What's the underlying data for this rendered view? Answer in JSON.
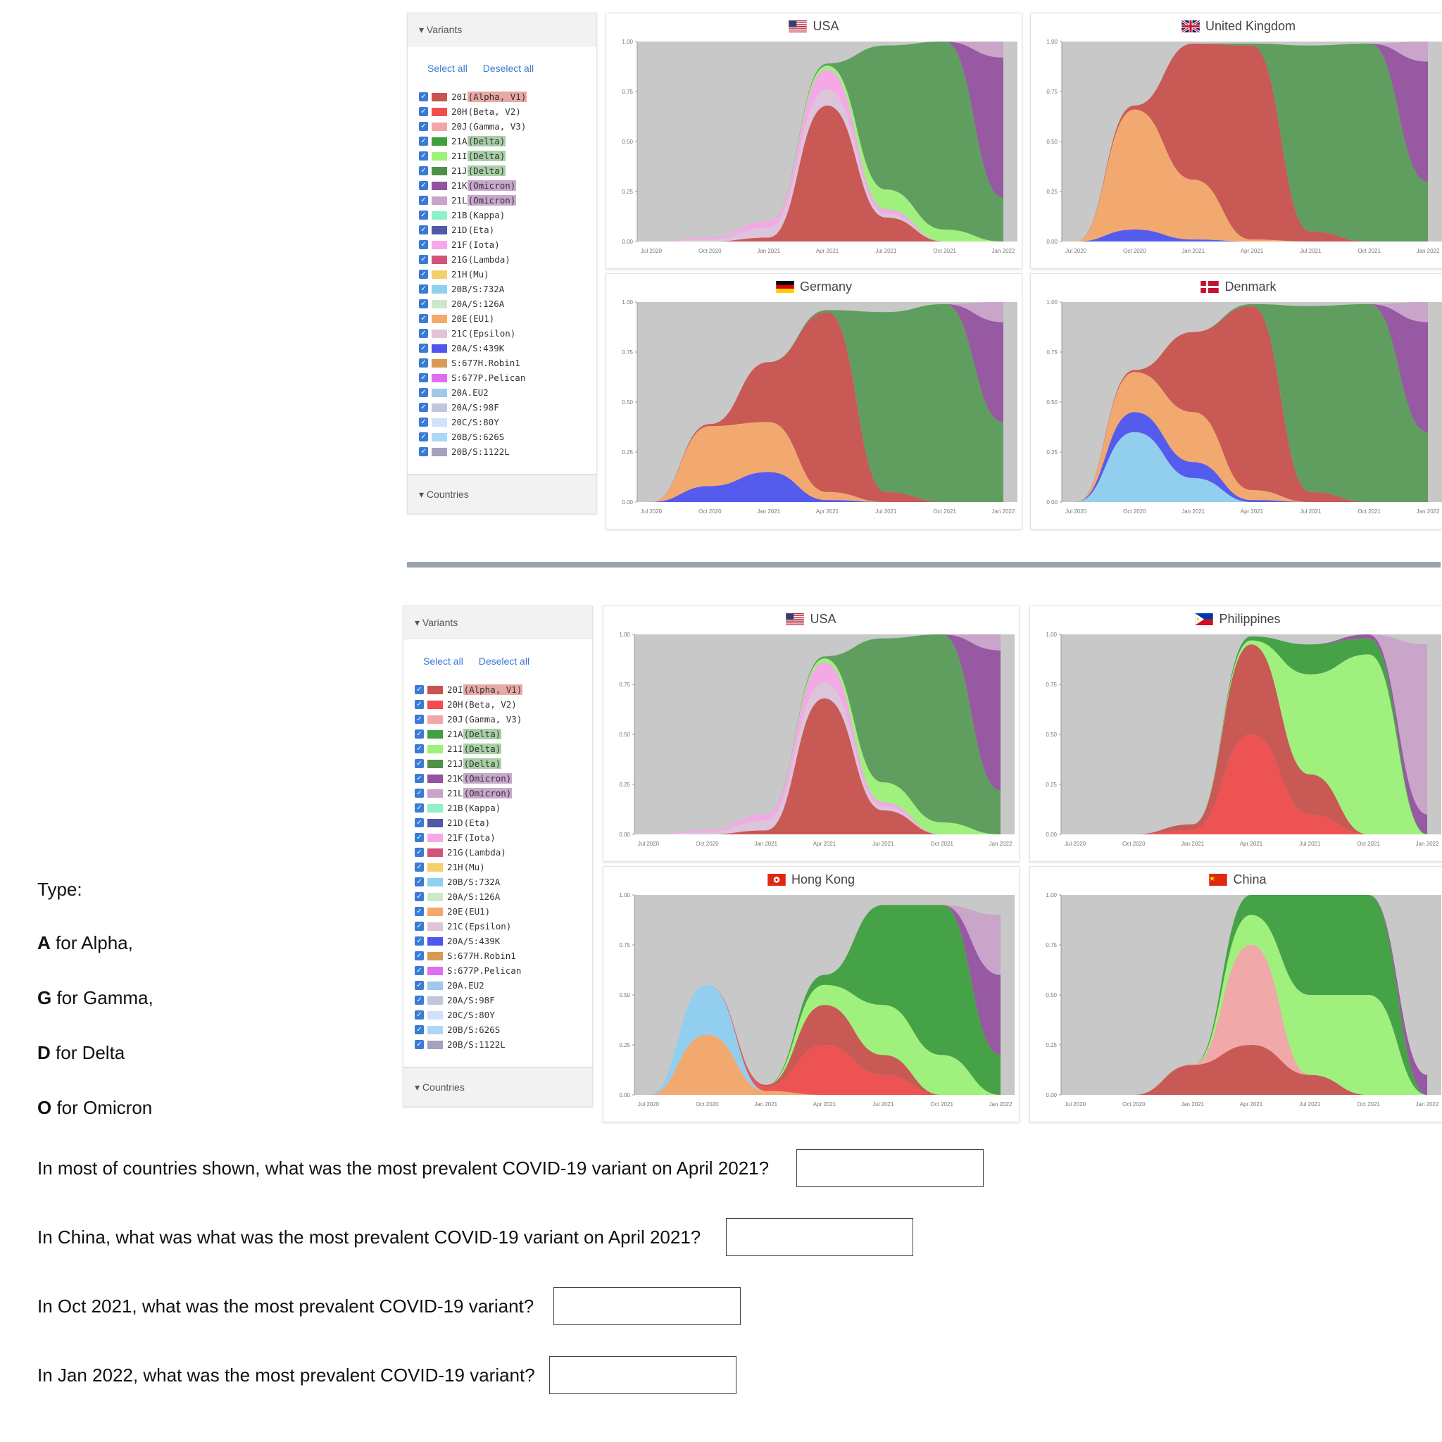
{
  "variants_panel": {
    "header": "Variants",
    "select_all": "Select all",
    "deselect_all": "Deselect all",
    "countries_header": "Countries",
    "items": [
      {
        "code": "20I",
        "name": "(Alpha, V1)",
        "color": "#c9534f",
        "highlight": "#e8a9a5"
      },
      {
        "code": "20H",
        "name": "(Beta, V2)",
        "color": "#f04d4d"
      },
      {
        "code": "20J",
        "name": "(Gamma, V3)",
        "color": "#f2a7a7"
      },
      {
        "code": "21A",
        "name": "(Delta)",
        "color": "#3fa03f",
        "highlight": "#a9cfa6"
      },
      {
        "code": "21I",
        "name": "(Delta)",
        "color": "#9ef27a",
        "highlight": "#a9cfa6"
      },
      {
        "code": "21J",
        "name": "(Delta)",
        "color": "#4f8f4a",
        "highlight": "#a9cfa6"
      },
      {
        "code": "21K",
        "name": "(Omicron)",
        "color": "#9453a0",
        "highlight": "#c8a8cc"
      },
      {
        "code": "21L",
        "name": "(Omicron)",
        "color": "#c9a3c9",
        "highlight": "#c8a8cc"
      },
      {
        "code": "21B",
        "name": "(Kappa)",
        "color": "#8ff0c9"
      },
      {
        "code": "21D",
        "name": "(Eta)",
        "color": "#5058a8"
      },
      {
        "code": "21F",
        "name": "(Iota)",
        "color": "#f7a8e8"
      },
      {
        "code": "21G",
        "name": "(Lambda)",
        "color": "#d2547a"
      },
      {
        "code": "21H",
        "name": "(Mu)",
        "color": "#f2d16b"
      },
      {
        "code": "20B/S:732A",
        "name": "",
        "color": "#8fd0f0"
      },
      {
        "code": "20A/S:126A",
        "name": "",
        "color": "#cde8c8"
      },
      {
        "code": "20E",
        "name": "(EU1)",
        "color": "#f4a86a"
      },
      {
        "code": "21C",
        "name": "(Epsilon)",
        "color": "#e2c4d8"
      },
      {
        "code": "20A/S:439K",
        "name": "",
        "color": "#4f55ef"
      },
      {
        "code": "S:677H.Robin1",
        "name": "",
        "color": "#d99a55"
      },
      {
        "code": "S:677P.Pelican",
        "name": "",
        "color": "#e06ef0"
      },
      {
        "code": "20A.EU2",
        "name": "",
        "color": "#9fc8ec"
      },
      {
        "code": "20A/S:98F",
        "name": "",
        "color": "#c2c6dc"
      },
      {
        "code": "20C/S:80Y",
        "name": "",
        "color": "#cfe2fb"
      },
      {
        "code": "20B/S:626S",
        "name": "",
        "color": "#aed6f5"
      },
      {
        "code": "20B/S:1122L",
        "name": "",
        "color": "#a3a3bf"
      }
    ]
  },
  "legend": {
    "type_label": "Type:",
    "items": [
      {
        "letter": "A",
        "text": " for Alpha,"
      },
      {
        "letter": "G",
        "text": " for Gamma,"
      },
      {
        "letter": "D",
        "text": " for Delta"
      },
      {
        "letter": "O",
        "text": " for Omicron"
      }
    ]
  },
  "questions": [
    "In most of countries shown, what was the most prevalent COVID-19 variant on April 2021?",
    "In China, what was what was the most prevalent COVID-19 variant on April 2021?",
    "In Oct 2021, what was the most prevalent COVID-19 variant?",
    "In Jan 2022, what was the most prevalent COVID-19 variant?"
  ],
  "colors": {
    "background_gray": "#c8c8c8",
    "alpha": "#c9534f",
    "beta": "#f04d4d",
    "gamma": "#f2a7a7",
    "delta_21A": "#3fa03f",
    "delta_21I": "#9ef27a",
    "delta_21J": "#5a9c58",
    "omicron_21K": "#9453a0",
    "omicron_21L": "#c9a3c9",
    "eu1": "#f4a86a",
    "iota": "#f7a8e8",
    "epsilon": "#ddc4dc",
    "s439k": "#4f55ef",
    "s732a": "#8fd0f0",
    "s126a": "#cde8c8"
  },
  "chart_data": [
    {
      "type": "area",
      "panel": "top-left",
      "title": "USA",
      "flag": "usa",
      "x": [
        "Jul 2020",
        "Oct 2020",
        "Jan 2021",
        "Apr 2021",
        "Jul 2021",
        "Oct 2021",
        "Jan 2022"
      ],
      "yticks": [
        "0.00",
        "0.25",
        "0.50",
        "0.75",
        "1.00"
      ],
      "ylim": [
        0,
        1
      ],
      "series": [
        {
          "name": "20I",
          "color": "#c9534f",
          "values": [
            0,
            0,
            0.02,
            0.68,
            0.12,
            0,
            0
          ]
        },
        {
          "name": "21C",
          "color": "#ddc4dc",
          "values": [
            0,
            0.01,
            0.05,
            0.08,
            0.02,
            0,
            0
          ]
        },
        {
          "name": "21F",
          "color": "#f7a8e8",
          "values": [
            0,
            0.01,
            0.03,
            0.1,
            0.02,
            0,
            0
          ]
        },
        {
          "name": "21I",
          "color": "#9ef27a",
          "values": [
            0,
            0,
            0,
            0.02,
            0.1,
            0.06,
            0
          ]
        },
        {
          "name": "21J",
          "color": "#5a9c58",
          "values": [
            0,
            0,
            0,
            0.01,
            0.72,
            0.94,
            0.22
          ]
        },
        {
          "name": "21K",
          "color": "#9453a0",
          "values": [
            0,
            0,
            0,
            0,
            0,
            0,
            0.7
          ]
        },
        {
          "name": "21L",
          "color": "#c9a3c9",
          "values": [
            0,
            0,
            0,
            0,
            0,
            0,
            0.08
          ]
        }
      ]
    },
    {
      "type": "area",
      "panel": "top-right",
      "title": "United Kingdom",
      "flag": "uk",
      "x": [
        "Jul 2020",
        "Oct 2020",
        "Jan 2021",
        "Apr 2021",
        "Jul 2021",
        "Oct 2021",
        "Jan 2022"
      ],
      "yticks": [
        "0.00",
        "0.25",
        "0.50",
        "0.75",
        "1.00"
      ],
      "ylim": [
        0,
        1
      ],
      "series": [
        {
          "name": "20A/S:439K",
          "color": "#4f55ef",
          "values": [
            0,
            0.06,
            0.01,
            0,
            0,
            0,
            0
          ]
        },
        {
          "name": "20E",
          "color": "#f4a86a",
          "values": [
            0,
            0.6,
            0.3,
            0.01,
            0,
            0,
            0
          ]
        },
        {
          "name": "20I",
          "color": "#c9534f",
          "values": [
            0,
            0.02,
            0.68,
            0.97,
            0.05,
            0,
            0
          ]
        },
        {
          "name": "21J",
          "color": "#5a9c58",
          "values": [
            0,
            0,
            0,
            0.01,
            0.93,
            0.99,
            0.3
          ]
        },
        {
          "name": "21K",
          "color": "#9453a0",
          "values": [
            0,
            0,
            0,
            0,
            0,
            0,
            0.6
          ]
        },
        {
          "name": "21L",
          "color": "#c9a3c9",
          "values": [
            0,
            0,
            0,
            0,
            0,
            0,
            0.1
          ]
        }
      ]
    },
    {
      "type": "area",
      "panel": "mid-left",
      "title": "Germany",
      "flag": "germany",
      "x": [
        "Jul 2020",
        "Oct 2020",
        "Jan 2021",
        "Apr 2021",
        "Jul 2021",
        "Oct 2021",
        "Jan 2022"
      ],
      "yticks": [
        "0.00",
        "0.25",
        "0.50",
        "0.75",
        "1.00"
      ],
      "ylim": [
        0,
        1
      ],
      "series": [
        {
          "name": "20A/S:439K",
          "color": "#4f55ef",
          "values": [
            0,
            0.08,
            0.15,
            0.01,
            0,
            0,
            0
          ]
        },
        {
          "name": "20E",
          "color": "#f4a86a",
          "values": [
            0,
            0.3,
            0.25,
            0.04,
            0,
            0,
            0
          ]
        },
        {
          "name": "20I",
          "color": "#c9534f",
          "values": [
            0,
            0.01,
            0.3,
            0.9,
            0.05,
            0,
            0
          ]
        },
        {
          "name": "21J",
          "color": "#5a9c58",
          "values": [
            0,
            0,
            0,
            0.01,
            0.9,
            0.99,
            0.4
          ]
        },
        {
          "name": "21K",
          "color": "#9453a0",
          "values": [
            0,
            0,
            0,
            0,
            0,
            0,
            0.5
          ]
        },
        {
          "name": "21L",
          "color": "#c9a3c9",
          "values": [
            0,
            0,
            0,
            0,
            0,
            0,
            0.1
          ]
        }
      ]
    },
    {
      "type": "area",
      "panel": "mid-right",
      "title": "Denmark",
      "flag": "denmark",
      "x": [
        "Jul 2020",
        "Oct 2020",
        "Jan 2021",
        "Apr 2021",
        "Jul 2021",
        "Oct 2021",
        "Jan 2022"
      ],
      "yticks": [
        "0.00",
        "0.25",
        "0.50",
        "0.75",
        "1.00"
      ],
      "ylim": [
        0,
        1
      ],
      "series": [
        {
          "name": "20B/S:732A",
          "color": "#8fd0f0",
          "values": [
            0,
            0.35,
            0.12,
            0,
            0,
            0,
            0
          ]
        },
        {
          "name": "20A/S:439K",
          "color": "#4f55ef",
          "values": [
            0,
            0.1,
            0.08,
            0.01,
            0,
            0,
            0
          ]
        },
        {
          "name": "20E",
          "color": "#f4a86a",
          "values": [
            0,
            0.2,
            0.25,
            0.05,
            0,
            0,
            0
          ]
        },
        {
          "name": "20I",
          "color": "#c9534f",
          "values": [
            0,
            0.01,
            0.4,
            0.92,
            0.05,
            0,
            0
          ]
        },
        {
          "name": "21J",
          "color": "#5a9c58",
          "values": [
            0,
            0,
            0,
            0.01,
            0.93,
            0.99,
            0.35
          ]
        },
        {
          "name": "21K",
          "color": "#9453a0",
          "values": [
            0,
            0,
            0,
            0,
            0,
            0,
            0.55
          ]
        },
        {
          "name": "21L",
          "color": "#c9a3c9",
          "values": [
            0,
            0,
            0,
            0,
            0,
            0,
            0.1
          ]
        }
      ]
    },
    {
      "type": "area",
      "panel": "bottom-usa",
      "title": "USA",
      "flag": "usa",
      "x": [
        "Jul 2020",
        "Oct 2020",
        "Jan 2021",
        "Apr 2021",
        "Jul 2021",
        "Oct 2021",
        "Jan 2022"
      ],
      "yticks": [
        "0.00",
        "0.25",
        "0.50",
        "0.75",
        "1.00"
      ],
      "ylim": [
        0,
        1
      ],
      "series": [
        {
          "name": "20I",
          "color": "#c9534f",
          "values": [
            0,
            0,
            0.02,
            0.68,
            0.12,
            0,
            0
          ]
        },
        {
          "name": "21C",
          "color": "#ddc4dc",
          "values": [
            0,
            0.01,
            0.05,
            0.08,
            0.02,
            0,
            0
          ]
        },
        {
          "name": "21F",
          "color": "#f7a8e8",
          "values": [
            0,
            0.01,
            0.03,
            0.1,
            0.02,
            0,
            0
          ]
        },
        {
          "name": "21I",
          "color": "#9ef27a",
          "values": [
            0,
            0,
            0,
            0.02,
            0.1,
            0.06,
            0
          ]
        },
        {
          "name": "21J",
          "color": "#5a9c58",
          "values": [
            0,
            0,
            0,
            0.01,
            0.72,
            0.94,
            0.22
          ]
        },
        {
          "name": "21K",
          "color": "#9453a0",
          "values": [
            0,
            0,
            0,
            0,
            0,
            0,
            0.7
          ]
        },
        {
          "name": "21L",
          "color": "#c9a3c9",
          "values": [
            0,
            0,
            0,
            0,
            0,
            0,
            0.08
          ]
        }
      ]
    },
    {
      "type": "area",
      "panel": "bottom-philippines",
      "title": "Philippines",
      "flag": "philippines",
      "x": [
        "Jul 2020",
        "Oct 2020",
        "Jan 2021",
        "Apr 2021",
        "Jul 2021",
        "Oct 2021",
        "Jan 2022"
      ],
      "yticks": [
        "0.00",
        "0.25",
        "0.50",
        "0.75",
        "1.00"
      ],
      "ylim": [
        0,
        1
      ],
      "series": [
        {
          "name": "20H",
          "color": "#f04d4d",
          "values": [
            0,
            0,
            0.02,
            0.5,
            0.1,
            0,
            0
          ]
        },
        {
          "name": "20I",
          "color": "#c9534f",
          "values": [
            0,
            0,
            0.03,
            0.45,
            0.2,
            0,
            0
          ]
        },
        {
          "name": "21I",
          "color": "#9ef27a",
          "values": [
            0,
            0,
            0,
            0.02,
            0.5,
            0.9,
            0
          ]
        },
        {
          "name": "21A",
          "color": "#3fa03f",
          "values": [
            0,
            0,
            0,
            0.02,
            0.15,
            0.08,
            0
          ]
        },
        {
          "name": "21K",
          "color": "#9453a0",
          "values": [
            0,
            0,
            0,
            0,
            0,
            0.02,
            0.1
          ]
        },
        {
          "name": "21L",
          "color": "#c9a3c9",
          "values": [
            0,
            0,
            0,
            0,
            0,
            0,
            0.85
          ]
        }
      ]
    },
    {
      "type": "area",
      "panel": "bottom-hongkong",
      "title": "Hong Kong",
      "flag": "hongkong",
      "x": [
        "Jul 2020",
        "Oct 2020",
        "Jan 2021",
        "Apr 2021",
        "Jul 2021",
        "Oct 2021",
        "Jan 2022"
      ],
      "yticks": [
        "0.00",
        "0.25",
        "0.50",
        "0.75",
        "1.00"
      ],
      "ylim": [
        0,
        1
      ],
      "series": [
        {
          "name": "20E",
          "color": "#f4a86a",
          "values": [
            0,
            0.3,
            0.02,
            0,
            0,
            0,
            0
          ]
        },
        {
          "name": "20B/S:732A",
          "color": "#8fd0f0",
          "values": [
            0,
            0.25,
            0,
            0,
            0,
            0,
            0
          ]
        },
        {
          "name": "20H",
          "color": "#f04d4d",
          "values": [
            0,
            0,
            0.02,
            0.25,
            0.1,
            0,
            0
          ]
        },
        {
          "name": "20I",
          "color": "#c9534f",
          "values": [
            0,
            0,
            0.01,
            0.2,
            0.1,
            0,
            0
          ]
        },
        {
          "name": "21I",
          "color": "#9ef27a",
          "values": [
            0,
            0,
            0,
            0.1,
            0.25,
            0.2,
            0
          ]
        },
        {
          "name": "21A",
          "color": "#3fa03f",
          "values": [
            0,
            0,
            0,
            0.05,
            0.5,
            0.75,
            0.2
          ]
        },
        {
          "name": "21K",
          "color": "#9453a0",
          "values": [
            0,
            0,
            0,
            0,
            0,
            0,
            0.4
          ]
        },
        {
          "name": "21L",
          "color": "#c9a3c9",
          "values": [
            0,
            0,
            0,
            0,
            0,
            0,
            0.3
          ]
        }
      ]
    },
    {
      "type": "area",
      "panel": "bottom-china",
      "title": "China",
      "flag": "china",
      "x": [
        "Jul 2020",
        "Oct 2020",
        "Jan 2021",
        "Apr 2021",
        "Jul 2021",
        "Oct 2021",
        "Jan 2022"
      ],
      "yticks": [
        "0.00",
        "0.25",
        "0.50",
        "0.75",
        "1.00"
      ],
      "ylim": [
        0,
        1
      ],
      "series": [
        {
          "name": "20I",
          "color": "#c9534f",
          "values": [
            0,
            0,
            0.15,
            0.25,
            0.1,
            0,
            0
          ]
        },
        {
          "name": "20J",
          "color": "#f2a7a7",
          "values": [
            0,
            0,
            0,
            0.5,
            0,
            0,
            0
          ]
        },
        {
          "name": "21I",
          "color": "#9ef27a",
          "values": [
            0,
            0,
            0,
            0.15,
            0.4,
            0.5,
            0
          ]
        },
        {
          "name": "21A",
          "color": "#3fa03f",
          "values": [
            0,
            0,
            0,
            0.1,
            0.5,
            0.5,
            0
          ]
        },
        {
          "name": "21K",
          "color": "#9453a0",
          "values": [
            0,
            0,
            0,
            0,
            0,
            0,
            0.1
          ]
        }
      ]
    }
  ]
}
